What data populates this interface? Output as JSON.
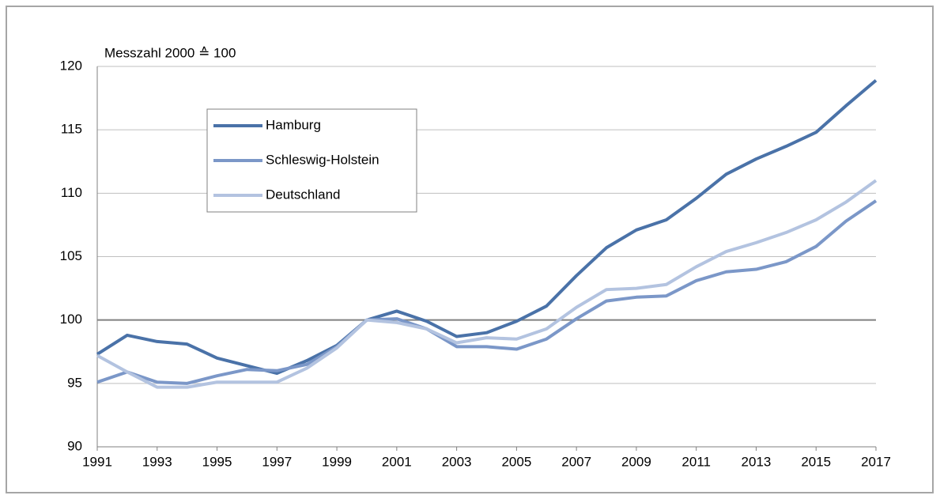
{
  "chart_data": {
    "type": "line",
    "axis_label": "Messzahl 2000 ≙ 100",
    "x": [
      1991,
      1992,
      1993,
      1994,
      1995,
      1996,
      1997,
      1998,
      1999,
      2000,
      2001,
      2002,
      2003,
      2004,
      2005,
      2006,
      2007,
      2008,
      2009,
      2010,
      2011,
      2012,
      2013,
      2014,
      2015,
      2016,
      2017
    ],
    "xlim": [
      1991,
      2017
    ],
    "xticks": [
      1991,
      1993,
      1995,
      1997,
      1999,
      2001,
      2003,
      2005,
      2007,
      2009,
      2011,
      2013,
      2015,
      2017
    ],
    "ylim": [
      90,
      120
    ],
    "yticks": [
      90,
      95,
      100,
      105,
      110,
      115,
      120
    ],
    "grid": true,
    "reference_line": 100,
    "legend": "upper left",
    "series": [
      {
        "name": "Hamburg",
        "color": "#4a72a8",
        "values": [
          97.3,
          98.8,
          98.3,
          98.1,
          97.0,
          96.4,
          95.8,
          96.8,
          98.0,
          100,
          100.7,
          99.9,
          98.7,
          99.0,
          99.9,
          101.1,
          103.5,
          105.7,
          107.1,
          107.9,
          109.6,
          111.5,
          112.7,
          113.7,
          114.8,
          116.9,
          118.9
        ]
      },
      {
        "name": "Schleswig-Holstein",
        "color": "#7b97c8",
        "values": [
          95.1,
          95.9,
          95.1,
          95.0,
          95.6,
          96.1,
          96.0,
          96.5,
          97.9,
          100,
          100.1,
          99.3,
          97.9,
          97.9,
          97.7,
          98.5,
          100.1,
          101.5,
          101.8,
          101.9,
          103.1,
          103.8,
          104.0,
          104.6,
          105.8,
          107.8,
          109.4
        ]
      },
      {
        "name": "Deutschland",
        "color": "#b3c3e0",
        "values": [
          97.2,
          95.9,
          94.7,
          94.7,
          95.1,
          95.1,
          95.1,
          96.2,
          97.8,
          100,
          99.8,
          99.3,
          98.2,
          98.6,
          98.5,
          99.3,
          101.0,
          102.4,
          102.5,
          102.8,
          104.2,
          105.4,
          106.1,
          106.9,
          107.9,
          109.3,
          111.0
        ]
      }
    ]
  }
}
